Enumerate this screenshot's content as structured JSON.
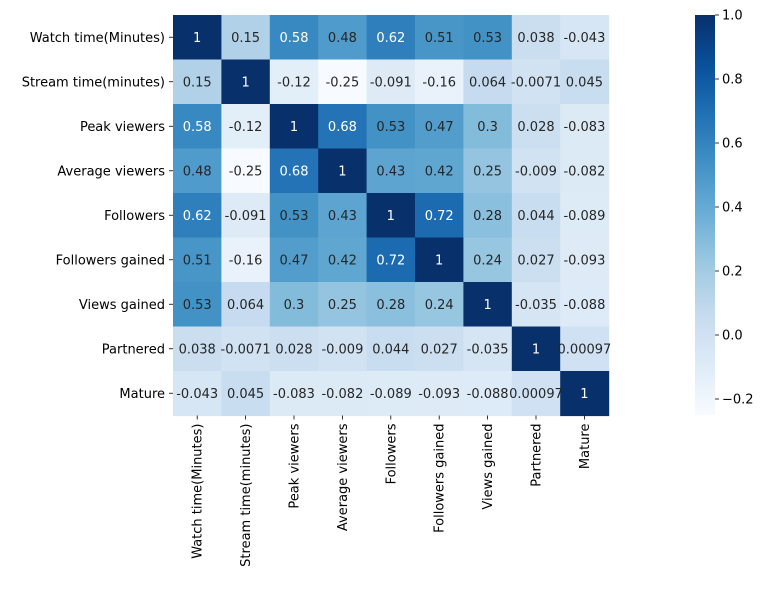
{
  "chart_data": {
    "type": "heatmap",
    "title": "",
    "xlabel": "",
    "ylabel": "",
    "labels": [
      "Watch time(Minutes)",
      "Stream time(minutes)",
      "Peak viewers",
      "Average viewers",
      "Followers",
      "Followers gained",
      "Views gained",
      "Partnered",
      "Mature"
    ],
    "values": [
      [
        1,
        0.15,
        0.58,
        0.48,
        0.62,
        0.51,
        0.53,
        0.038,
        -0.043
      ],
      [
        0.15,
        1,
        -0.12,
        -0.25,
        -0.091,
        -0.16,
        0.064,
        -0.0071,
        0.045
      ],
      [
        0.58,
        -0.12,
        1,
        0.68,
        0.53,
        0.47,
        0.3,
        0.028,
        -0.083
      ],
      [
        0.48,
        -0.25,
        0.68,
        1,
        0.43,
        0.42,
        0.25,
        -0.009,
        -0.082
      ],
      [
        0.62,
        -0.091,
        0.53,
        0.43,
        1,
        0.72,
        0.28,
        0.044,
        -0.089
      ],
      [
        0.51,
        -0.16,
        0.47,
        0.42,
        0.72,
        1,
        0.24,
        0.027,
        -0.093
      ],
      [
        0.53,
        0.064,
        0.3,
        0.25,
        0.28,
        0.24,
        1,
        -0.035,
        -0.088
      ],
      [
        0.038,
        -0.0071,
        0.028,
        -0.009,
        0.044,
        0.027,
        -0.035,
        1,
        0.00097
      ],
      [
        -0.043,
        0.045,
        -0.083,
        -0.082,
        -0.089,
        -0.093,
        -0.088,
        0.00097,
        1
      ]
    ],
    "annotations": [
      [
        "1",
        "0.15",
        "0.58",
        "0.48",
        "0.62",
        "0.51",
        "0.53",
        "0.038",
        "-0.043"
      ],
      [
        "0.15",
        "1",
        "-0.12",
        "-0.25",
        "-0.091",
        "-0.16",
        "0.064",
        "-0.0071",
        "0.045"
      ],
      [
        "0.58",
        "-0.12",
        "1",
        "0.68",
        "0.53",
        "0.47",
        "0.3",
        "0.028",
        "-0.083"
      ],
      [
        "0.48",
        "-0.25",
        "0.68",
        "1",
        "0.43",
        "0.42",
        "0.25",
        "-0.009",
        "-0.082"
      ],
      [
        "0.62",
        "-0.091",
        "0.53",
        "0.43",
        "1",
        "0.72",
        "0.28",
        "0.044",
        "-0.089"
      ],
      [
        "0.51",
        "-0.16",
        "0.47",
        "0.42",
        "0.72",
        "1",
        "0.24",
        "0.027",
        "-0.093"
      ],
      [
        "0.53",
        "0.064",
        "0.3",
        "0.25",
        "0.28",
        "0.24",
        "1",
        "-0.035",
        "-0.088"
      ],
      [
        "0.038",
        "-0.0071",
        "0.028",
        "-0.009",
        "0.044",
        "0.027",
        "-0.035",
        "1",
        "0.00097"
      ],
      [
        "-0.043",
        "0.045",
        "-0.083",
        "-0.082",
        "-0.089",
        "-0.093",
        "-0.088",
        "0.00097",
        "1"
      ]
    ],
    "colormap": "Blues",
    "color_range": [
      -0.25,
      1
    ],
    "colorbar": {
      "ticks": [
        1.0,
        0.8,
        0.6,
        0.4,
        0.2,
        0.0,
        -0.2
      ],
      "tick_labels": [
        "1.0",
        "0.8",
        "0.6",
        "0.4",
        "0.2",
        "0.0",
        "−0.2"
      ]
    },
    "grid": false,
    "colorbar_placement": "right"
  }
}
